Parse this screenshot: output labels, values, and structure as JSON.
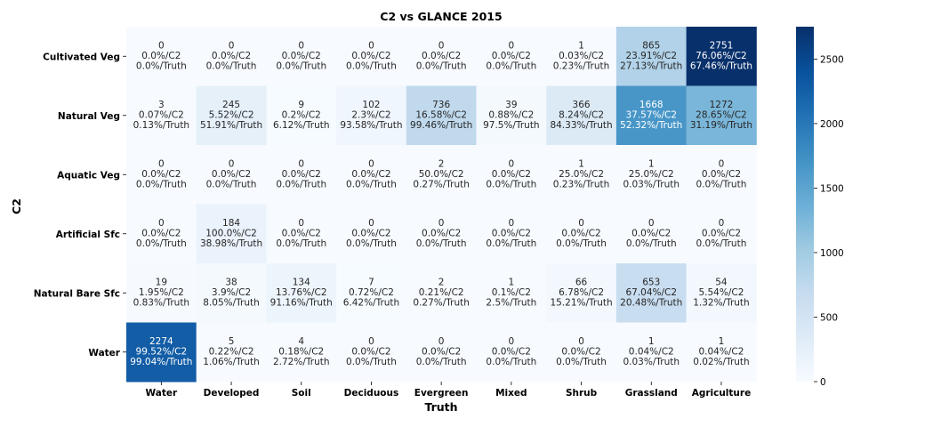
{
  "chart_data": {
    "type": "heatmap",
    "title": "C2 vs GLANCE 2015",
    "xlabel": "Truth",
    "ylabel": "C2",
    "x_categories": [
      "Water",
      "Developed",
      "Soil",
      "Deciduous",
      "Evergreen",
      "Mixed",
      "Shrub",
      "Grassland",
      "Agriculture"
    ],
    "y_categories": [
      "Cultivated Veg",
      "Natural Veg",
      "Aquatic Veg",
      "Artificial Sfc",
      "Natural Bare Sfc",
      "Water"
    ],
    "colormap": "Blues",
    "vmin": 0,
    "vmax": 2751,
    "colorbar_ticks": [
      0,
      500,
      1000,
      1500,
      2000,
      2500
    ],
    "values": [
      [
        0,
        0,
        0,
        0,
        0,
        0,
        1,
        865,
        2751
      ],
      [
        3,
        245,
        9,
        102,
        736,
        39,
        366,
        1668,
        1272
      ],
      [
        0,
        0,
        0,
        0,
        2,
        0,
        1,
        1,
        0
      ],
      [
        0,
        184,
        0,
        0,
        0,
        0,
        0,
        0,
        0
      ],
      [
        19,
        38,
        134,
        7,
        2,
        1,
        66,
        653,
        54
      ],
      [
        2274,
        5,
        4,
        0,
        0,
        0,
        0,
        1,
        1
      ]
    ],
    "pct_c2": [
      [
        "0.0%/C2",
        "0.0%/C2",
        "0.0%/C2",
        "0.0%/C2",
        "0.0%/C2",
        "0.0%/C2",
        "0.03%/C2",
        "23.91%/C2",
        "76.06%/C2"
      ],
      [
        "0.07%/C2",
        "5.52%/C2",
        "0.2%/C2",
        "2.3%/C2",
        "16.58%/C2",
        "0.88%/C2",
        "8.24%/C2",
        "37.57%/C2",
        "28.65%/C2"
      ],
      [
        "0.0%/C2",
        "0.0%/C2",
        "0.0%/C2",
        "0.0%/C2",
        "50.0%/C2",
        "0.0%/C2",
        "25.0%/C2",
        "25.0%/C2",
        "0.0%/C2"
      ],
      [
        "0.0%/C2",
        "100.0%/C2",
        "0.0%/C2",
        "0.0%/C2",
        "0.0%/C2",
        "0.0%/C2",
        "0.0%/C2",
        "0.0%/C2",
        "0.0%/C2"
      ],
      [
        "1.95%/C2",
        "3.9%/C2",
        "13.76%/C2",
        "0.72%/C2",
        "0.21%/C2",
        "0.1%/C2",
        "6.78%/C2",
        "67.04%/C2",
        "5.54%/C2"
      ],
      [
        "99.52%/C2",
        "0.22%/C2",
        "0.18%/C2",
        "0.0%/C2",
        "0.0%/C2",
        "0.0%/C2",
        "0.0%/C2",
        "0.04%/C2",
        "0.04%/C2"
      ]
    ],
    "pct_truth": [
      [
        "0.0%/Truth",
        "0.0%/Truth",
        "0.0%/Truth",
        "0.0%/Truth",
        "0.0%/Truth",
        "0.0%/Truth",
        "0.23%/Truth",
        "27.13%/Truth",
        "67.46%/Truth"
      ],
      [
        "0.13%/Truth",
        "51.91%/Truth",
        "6.12%/Truth",
        "93.58%/Truth",
        "99.46%/Truth",
        "97.5%/Truth",
        "84.33%/Truth",
        "52.32%/Truth",
        "31.19%/Truth"
      ],
      [
        "0.0%/Truth",
        "0.0%/Truth",
        "0.0%/Truth",
        "0.0%/Truth",
        "0.27%/Truth",
        "0.0%/Truth",
        "0.23%/Truth",
        "0.03%/Truth",
        "0.0%/Truth"
      ],
      [
        "0.0%/Truth",
        "38.98%/Truth",
        "0.0%/Truth",
        "0.0%/Truth",
        "0.0%/Truth",
        "0.0%/Truth",
        "0.0%/Truth",
        "0.0%/Truth",
        "0.0%/Truth"
      ],
      [
        "0.83%/Truth",
        "8.05%/Truth",
        "91.16%/Truth",
        "6.42%/Truth",
        "0.27%/Truth",
        "2.5%/Truth",
        "15.21%/Truth",
        "20.48%/Truth",
        "1.32%/Truth"
      ],
      [
        "99.04%/Truth",
        "1.06%/Truth",
        "2.72%/Truth",
        "0.0%/Truth",
        "0.0%/Truth",
        "0.0%/Truth",
        "0.0%/Truth",
        "0.03%/Truth",
        "0.02%/Truth"
      ]
    ]
  }
}
